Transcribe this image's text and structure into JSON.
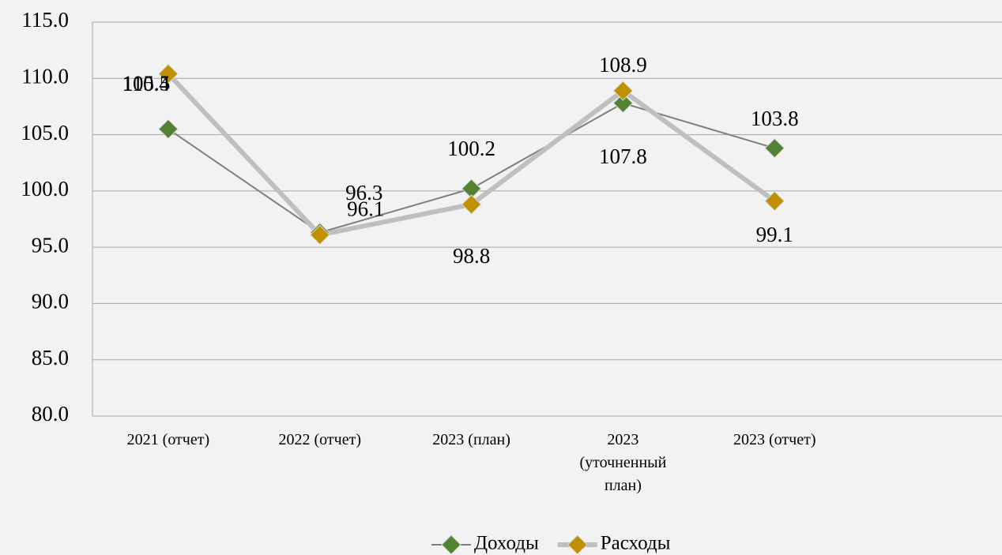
{
  "chart_data": {
    "type": "line",
    "categories": [
      "2021 (отчет)",
      "2022 (отчет)",
      "2023 (план)",
      "2023 (уточненный план)",
      "2023 (отчет)"
    ],
    "series": [
      {
        "name": "Доходы",
        "color": "#548235",
        "line_color": "#7f7f7f",
        "values": [
          105.5,
          96.3,
          100.2,
          107.8,
          103.8
        ]
      },
      {
        "name": "Расходы",
        "color": "#bf9000",
        "line_color": "#bfbfbf",
        "values": [
          110.4,
          96.1,
          98.8,
          108.9,
          99.1
        ]
      }
    ],
    "ylim": [
      80,
      115
    ],
    "yticks": [
      {
        "value": 80,
        "label": "80.0"
      },
      {
        "value": 85,
        "label": "85.0"
      },
      {
        "value": 90,
        "label": "90.0"
      },
      {
        "value": 95,
        "label": "95.0"
      },
      {
        "value": 100,
        "label": "100.0"
      },
      {
        "value": 105,
        "label": "105.0"
      },
      {
        "value": 110,
        "label": "110.0"
      },
      {
        "value": 115,
        "label": "115.0"
      }
    ],
    "grid": true,
    "legend": "bottom"
  }
}
